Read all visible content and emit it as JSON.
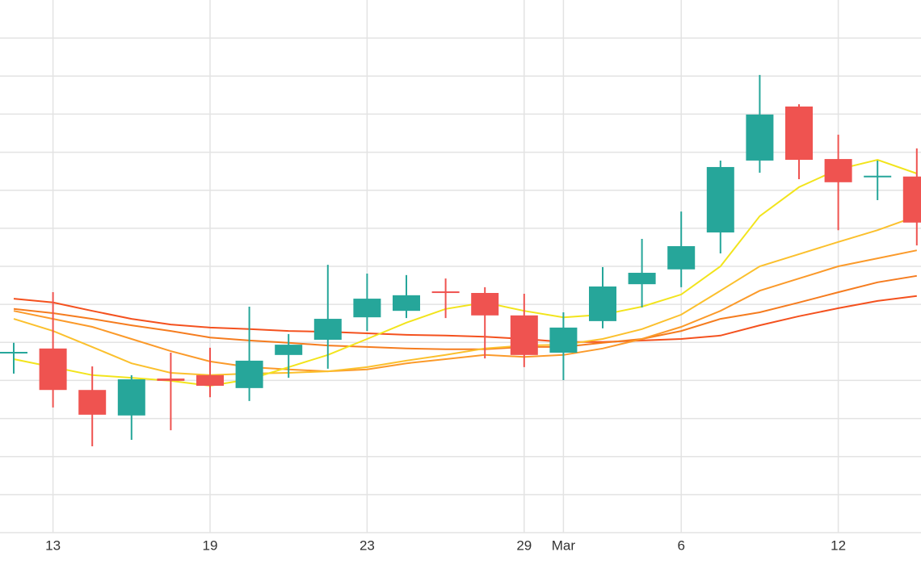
{
  "chart_data": {
    "type": "candlestick",
    "categories": [
      null,
      "13",
      null,
      null,
      null,
      "19",
      null,
      null,
      null,
      "23",
      null,
      null,
      null,
      "29",
      "Mar",
      null,
      null,
      "6",
      null,
      null,
      null,
      "12",
      null,
      null
    ],
    "open": [
      4.73,
      4.84,
      3.75,
      3.08,
      4.05,
      4.14,
      3.8,
      4.67,
      5.07,
      5.66,
      5.83,
      6.32,
      6.3,
      5.71,
      4.73,
      5.56,
      6.53,
      6.92,
      7.89,
      9.78,
      11.2,
      9.82,
      9.36,
      9.36
    ],
    "high": [
      4.99,
      6.32,
      4.37,
      4.14,
      4.73,
      4.86,
      5.94,
      5.22,
      7.04,
      6.81,
      6.77,
      6.68,
      6.45,
      6.28,
      5.79,
      6.98,
      7.72,
      8.44,
      9.78,
      12.03,
      11.26,
      10.46,
      9.78,
      10.1
    ],
    "low": [
      4.18,
      3.29,
      2.27,
      2.44,
      2.69,
      3.56,
      3.46,
      4.07,
      4.31,
      5.3,
      5.64,
      5.64,
      4.58,
      4.35,
      4.01,
      5.37,
      5.92,
      6.45,
      7.34,
      9.46,
      9.29,
      7.95,
      8.74,
      7.55
    ],
    "close": [
      4.73,
      3.75,
      3.1,
      4.03,
      3.99,
      3.86,
      4.52,
      4.94,
      5.62,
      6.15,
      6.24,
      6.3,
      5.71,
      4.67,
      5.39,
      6.47,
      6.83,
      7.53,
      9.61,
      10.99,
      9.8,
      9.21,
      9.36,
      8.15
    ],
    "up_color": "#26a69a",
    "down_color": "#ef5350",
    "series": [
      {
        "color": "#f4511e",
        "values": [
          6.15,
          6.05,
          5.83,
          5.62,
          5.47,
          5.39,
          5.35,
          5.3,
          5.28,
          5.24,
          5.2,
          5.18,
          5.15,
          5.09,
          5.01,
          5.01,
          5.05,
          5.09,
          5.18,
          5.45,
          5.69,
          5.9,
          6.09,
          6.22
        ]
      },
      {
        "color": "#f57c1f",
        "values": [
          5.88,
          5.77,
          5.62,
          5.45,
          5.3,
          5.13,
          5.05,
          4.99,
          4.92,
          4.88,
          4.84,
          4.82,
          4.82,
          4.88,
          4.88,
          4.99,
          5.09,
          5.3,
          5.62,
          5.79,
          6.05,
          6.32,
          6.58,
          6.75
        ]
      },
      {
        "color": "#fb9a2a",
        "values": [
          5.83,
          5.62,
          5.41,
          5.09,
          4.77,
          4.5,
          4.35,
          4.29,
          4.24,
          4.29,
          4.45,
          4.56,
          4.67,
          4.62,
          4.67,
          4.84,
          5.09,
          5.41,
          5.83,
          6.36,
          6.68,
          7.0,
          7.21,
          7.42
        ]
      },
      {
        "color": "#fbc02d",
        "values": [
          5.62,
          5.3,
          4.88,
          4.45,
          4.2,
          4.14,
          4.18,
          4.2,
          4.24,
          4.35,
          4.52,
          4.67,
          4.84,
          4.92,
          4.94,
          5.09,
          5.35,
          5.73,
          6.36,
          7.0,
          7.32,
          7.64,
          7.95,
          8.32
        ]
      },
      {
        "color": "#f2e41c",
        "values": [
          4.56,
          4.35,
          4.14,
          4.07,
          3.99,
          3.86,
          4.03,
          4.35,
          4.67,
          5.09,
          5.52,
          5.88,
          6.05,
          5.83,
          5.66,
          5.73,
          5.94,
          6.26,
          7.0,
          8.32,
          9.08,
          9.55,
          9.8,
          9.44
        ]
      }
    ],
    "ylim": [
      0,
      14
    ],
    "yticks": [
      1,
      2,
      3,
      4,
      5,
      6,
      7,
      8,
      9,
      10,
      11,
      12,
      13
    ],
    "grid": true
  }
}
